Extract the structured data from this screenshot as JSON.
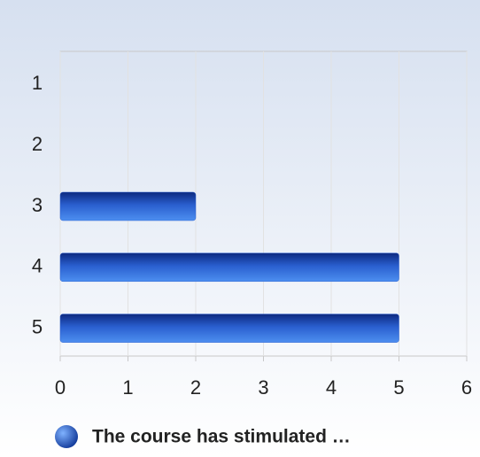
{
  "chart_data": {
    "type": "bar",
    "orientation": "horizontal",
    "categories": [
      "1",
      "2",
      "3",
      "4",
      "5"
    ],
    "series": [
      {
        "name": "The course has stimulated …",
        "color": "#2a5fcf",
        "values": [
          0,
          0,
          2,
          5,
          5
        ]
      }
    ],
    "xlim": [
      0,
      6
    ],
    "xticks": [
      0,
      1,
      2,
      3,
      4,
      5,
      6
    ],
    "grid": true,
    "legend": "bottom"
  }
}
